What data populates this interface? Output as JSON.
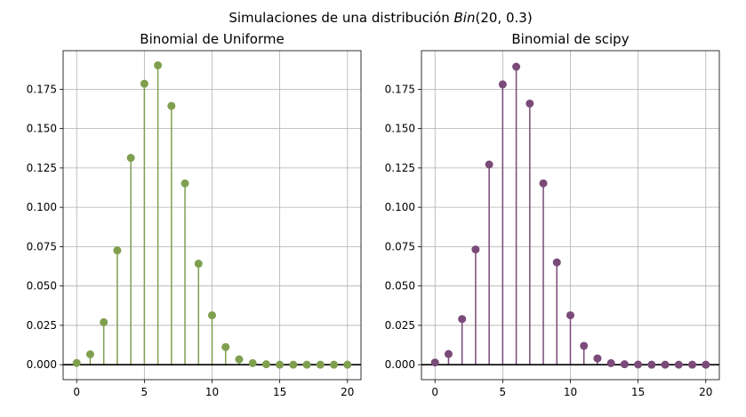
{
  "figure": {
    "suptitle_prefix": "Simulaciones de una distribución ",
    "suptitle_math": "Bin",
    "suptitle_args": "(20, 0.3)"
  },
  "chart_data": [
    {
      "type": "stem",
      "title": "Binomial de Uniforme",
      "color": "#7f9f4f",
      "x": [
        0,
        1,
        2,
        3,
        4,
        5,
        6,
        7,
        8,
        9,
        10,
        11,
        12,
        13,
        14,
        15,
        16,
        17,
        18,
        19,
        20
      ],
      "values": [
        0.0011,
        0.0066,
        0.027,
        0.0726,
        0.1314,
        0.1785,
        0.1902,
        0.1644,
        0.1152,
        0.0642,
        0.0314,
        0.0112,
        0.0034,
        0.001,
        0.0003,
        0.0,
        0.0,
        0.0,
        0.0,
        0.0,
        0.0
      ],
      "xlim": [
        -1,
        21
      ],
      "ylim": [
        -0.0095,
        0.1995
      ],
      "xticks": [
        0,
        5,
        10,
        15,
        20
      ],
      "yticks": [
        0.0,
        0.025,
        0.05,
        0.075,
        0.1,
        0.125,
        0.15,
        0.175
      ],
      "ytick_labels": [
        "0.000",
        "0.025",
        "0.050",
        "0.075",
        "0.100",
        "0.125",
        "0.150",
        "0.175"
      ],
      "grid": true
    },
    {
      "type": "stem",
      "title": "Binomial de scipy",
      "color": "#7a4a78",
      "x": [
        0,
        1,
        2,
        3,
        4,
        5,
        6,
        7,
        8,
        9,
        10,
        11,
        12,
        13,
        14,
        15,
        16,
        17,
        18,
        19,
        20
      ],
      "values": [
        0.0014,
        0.0068,
        0.029,
        0.0732,
        0.1272,
        0.1781,
        0.1893,
        0.1659,
        0.1152,
        0.065,
        0.0314,
        0.012,
        0.004,
        0.001,
        0.0003,
        0.0001,
        0.0,
        0.0,
        0.0,
        0.0,
        0.0
      ],
      "xlim": [
        -1,
        21
      ],
      "ylim": [
        -0.0095,
        0.1995
      ],
      "xticks": [
        0,
        5,
        10,
        15,
        20
      ],
      "yticks": [
        0.0,
        0.025,
        0.05,
        0.075,
        0.1,
        0.125,
        0.15,
        0.175
      ],
      "ytick_labels": [
        "0.000",
        "0.025",
        "0.050",
        "0.075",
        "0.100",
        "0.125",
        "0.150",
        "0.175"
      ],
      "grid": true
    }
  ]
}
